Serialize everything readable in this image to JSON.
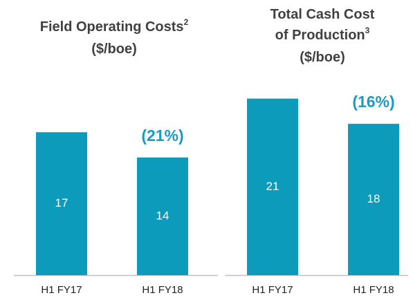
{
  "chart_data": [
    {
      "type": "bar",
      "title": [
        {
          "text": "Field Operating Costs",
          "sup": "2"
        },
        {
          "text": "($/boe)"
        }
      ],
      "categories": [
        "H1 FY17",
        "H1 FY18"
      ],
      "values": [
        17,
        14
      ],
      "color": "#0c9bbb",
      "annotation": "(21%)",
      "ylim": [
        0,
        25
      ]
    },
    {
      "type": "bar",
      "title": [
        {
          "text": "Total Cash Cost"
        },
        {
          "text": "of Production",
          "sup": "3"
        },
        {
          "text": "($/boe)"
        }
      ],
      "categories": [
        "H1 FY17",
        "H1 FY18"
      ],
      "values": [
        21,
        18
      ],
      "color": "#0c9bbb",
      "annotation": "(16%)",
      "ylim": [
        0,
        25
      ]
    }
  ]
}
